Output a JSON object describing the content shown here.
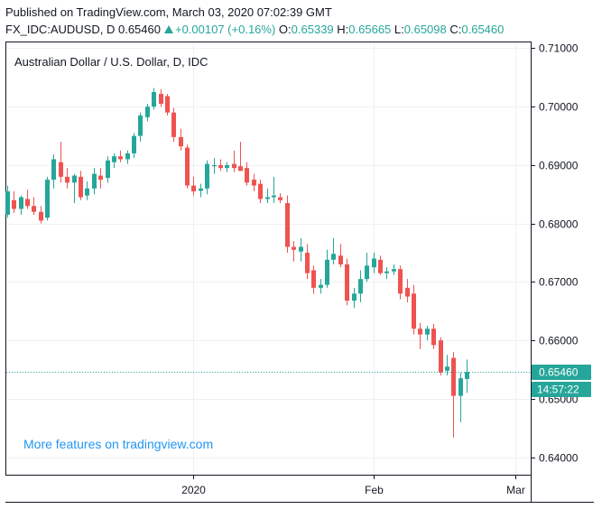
{
  "header": {
    "published": "Published on TradingView.com, March 03, 2020 07:02:39 GMT",
    "symbol": "FX_IDC:AUDUSD, D",
    "last": "0.65460",
    "change": "+0.00107 (+0.16%)",
    "o_label": "O:",
    "o_value": "0.65339",
    "h_label": "H:",
    "h_value": "0.65665",
    "l_label": "L:",
    "l_value": "0.65098",
    "c_label": "C:",
    "c_value": "0.65460"
  },
  "chart_data": {
    "type": "candlestick",
    "title": "Australian Dollar / U.S. Dollar, D, IDC",
    "ylim": [
      0.637,
      0.711
    ],
    "y_ticks": [
      "0.71000",
      "0.70000",
      "0.69000",
      "0.68000",
      "0.67000",
      "0.66000",
      "0.65000",
      "0.64000"
    ],
    "y_tick_values": [
      0.71,
      0.7,
      0.69,
      0.68,
      0.67,
      0.66,
      0.65,
      0.64
    ],
    "x_ticks": [
      "2020",
      "Feb",
      "Mar"
    ],
    "x_tick_positions": [
      28,
      55,
      76.3
    ],
    "last_price": 0.6546,
    "last_price_label": "0.65460",
    "countdown": "14:57:22",
    "promo": "More features on tradingview.com",
    "colors": {
      "up": "#26a69a",
      "down": "#ef5350",
      "grid": "#eef1f5",
      "axis": "#131722",
      "last": "#26a69a"
    },
    "candles": [
      {
        "o": 0.6815,
        "h": 0.6865,
        "l": 0.681,
        "c": 0.6855
      },
      {
        "o": 0.684,
        "h": 0.6855,
        "l": 0.6818,
        "c": 0.6825
      },
      {
        "o": 0.6825,
        "h": 0.6848,
        "l": 0.6815,
        "c": 0.6845
      },
      {
        "o": 0.6842,
        "h": 0.6858,
        "l": 0.6825,
        "c": 0.683
      },
      {
        "o": 0.683,
        "h": 0.6845,
        "l": 0.6815,
        "c": 0.682
      },
      {
        "o": 0.682,
        "h": 0.683,
        "l": 0.68,
        "c": 0.6805
      },
      {
        "o": 0.681,
        "h": 0.688,
        "l": 0.6805,
        "c": 0.6875
      },
      {
        "o": 0.6875,
        "h": 0.6918,
        "l": 0.686,
        "c": 0.691
      },
      {
        "o": 0.6905,
        "h": 0.694,
        "l": 0.687,
        "c": 0.688
      },
      {
        "o": 0.688,
        "h": 0.6895,
        "l": 0.686,
        "c": 0.687
      },
      {
        "o": 0.687,
        "h": 0.6885,
        "l": 0.6835,
        "c": 0.6882
      },
      {
        "o": 0.688,
        "h": 0.689,
        "l": 0.684,
        "c": 0.6845
      },
      {
        "o": 0.6848,
        "h": 0.6872,
        "l": 0.684,
        "c": 0.686
      },
      {
        "o": 0.686,
        "h": 0.6895,
        "l": 0.685,
        "c": 0.6885
      },
      {
        "o": 0.6882,
        "h": 0.6895,
        "l": 0.686,
        "c": 0.6875
      },
      {
        "o": 0.6878,
        "h": 0.6915,
        "l": 0.687,
        "c": 0.6908
      },
      {
        "o": 0.6905,
        "h": 0.692,
        "l": 0.6895,
        "c": 0.6915
      },
      {
        "o": 0.6915,
        "h": 0.6925,
        "l": 0.6905,
        "c": 0.691
      },
      {
        "o": 0.691,
        "h": 0.6925,
        "l": 0.6902,
        "c": 0.692
      },
      {
        "o": 0.692,
        "h": 0.6955,
        "l": 0.6912,
        "c": 0.695
      },
      {
        "o": 0.695,
        "h": 0.699,
        "l": 0.694,
        "c": 0.6985
      },
      {
        "o": 0.6982,
        "h": 0.7005,
        "l": 0.6975,
        "c": 0.7
      },
      {
        "o": 0.7,
        "h": 0.7032,
        "l": 0.6995,
        "c": 0.7025
      },
      {
        "o": 0.7022,
        "h": 0.703,
        "l": 0.7,
        "c": 0.7005
      },
      {
        "o": 0.7018,
        "h": 0.7022,
        "l": 0.6985,
        "c": 0.699
      },
      {
        "o": 0.699,
        "h": 0.6998,
        "l": 0.694,
        "c": 0.6948
      },
      {
        "o": 0.6948,
        "h": 0.6962,
        "l": 0.6925,
        "c": 0.6932
      },
      {
        "o": 0.693,
        "h": 0.6935,
        "l": 0.686,
        "c": 0.6865
      },
      {
        "o": 0.6865,
        "h": 0.688,
        "l": 0.6848,
        "c": 0.6855
      },
      {
        "o": 0.6856,
        "h": 0.6868,
        "l": 0.6845,
        "c": 0.686
      },
      {
        "o": 0.686,
        "h": 0.6908,
        "l": 0.685,
        "c": 0.6902
      },
      {
        "o": 0.6898,
        "h": 0.6912,
        "l": 0.6885,
        "c": 0.69
      },
      {
        "o": 0.69,
        "h": 0.691,
        "l": 0.689,
        "c": 0.6895
      },
      {
        "o": 0.6895,
        "h": 0.6905,
        "l": 0.6888,
        "c": 0.69
      },
      {
        "o": 0.6902,
        "h": 0.6925,
        "l": 0.6888,
        "c": 0.6895
      },
      {
        "o": 0.6898,
        "h": 0.694,
        "l": 0.689,
        "c": 0.689
      },
      {
        "o": 0.6895,
        "h": 0.6905,
        "l": 0.6865,
        "c": 0.687
      },
      {
        "o": 0.6875,
        "h": 0.6885,
        "l": 0.6855,
        "c": 0.6865
      },
      {
        "o": 0.6868,
        "h": 0.6875,
        "l": 0.6835,
        "c": 0.6842
      },
      {
        "o": 0.6842,
        "h": 0.686,
        "l": 0.6835,
        "c": 0.6845
      },
      {
        "o": 0.6845,
        "h": 0.688,
        "l": 0.6835,
        "c": 0.6848
      },
      {
        "o": 0.6845,
        "h": 0.6852,
        "l": 0.6835,
        "c": 0.684
      },
      {
        "o": 0.6835,
        "h": 0.6848,
        "l": 0.675,
        "c": 0.676
      },
      {
        "o": 0.676,
        "h": 0.677,
        "l": 0.6735,
        "c": 0.6755
      },
      {
        "o": 0.6752,
        "h": 0.6775,
        "l": 0.6735,
        "c": 0.676
      },
      {
        "o": 0.675,
        "h": 0.6765,
        "l": 0.6705,
        "c": 0.6715
      },
      {
        "o": 0.672,
        "h": 0.6728,
        "l": 0.668,
        "c": 0.669
      },
      {
        "o": 0.669,
        "h": 0.6705,
        "l": 0.668,
        "c": 0.6695
      },
      {
        "o": 0.6695,
        "h": 0.6755,
        "l": 0.669,
        "c": 0.6738
      },
      {
        "o": 0.6738,
        "h": 0.6775,
        "l": 0.673,
        "c": 0.6748
      },
      {
        "o": 0.6745,
        "h": 0.6765,
        "l": 0.6725,
        "c": 0.673
      },
      {
        "o": 0.673,
        "h": 0.674,
        "l": 0.666,
        "c": 0.6668
      },
      {
        "o": 0.6668,
        "h": 0.669,
        "l": 0.6655,
        "c": 0.668
      },
      {
        "o": 0.668,
        "h": 0.672,
        "l": 0.6665,
        "c": 0.6705
      },
      {
        "o": 0.6705,
        "h": 0.675,
        "l": 0.67,
        "c": 0.6728
      },
      {
        "o": 0.6725,
        "h": 0.675,
        "l": 0.6715,
        "c": 0.674
      },
      {
        "o": 0.6738,
        "h": 0.6745,
        "l": 0.6712,
        "c": 0.6715
      },
      {
        "o": 0.6715,
        "h": 0.6725,
        "l": 0.6705,
        "c": 0.6718
      },
      {
        "o": 0.6718,
        "h": 0.673,
        "l": 0.6712,
        "c": 0.6722
      },
      {
        "o": 0.6722,
        "h": 0.6728,
        "l": 0.667,
        "c": 0.668
      },
      {
        "o": 0.669,
        "h": 0.6705,
        "l": 0.6665,
        "c": 0.6675
      },
      {
        "o": 0.668,
        "h": 0.6695,
        "l": 0.661,
        "c": 0.662
      },
      {
        "o": 0.662,
        "h": 0.663,
        "l": 0.6585,
        "c": 0.661
      },
      {
        "o": 0.661,
        "h": 0.6625,
        "l": 0.66,
        "c": 0.662
      },
      {
        "o": 0.662,
        "h": 0.6628,
        "l": 0.6585,
        "c": 0.6592
      },
      {
        "o": 0.66,
        "h": 0.6605,
        "l": 0.654,
        "c": 0.6545
      },
      {
        "o": 0.6548,
        "h": 0.6575,
        "l": 0.654,
        "c": 0.6555
      },
      {
        "o": 0.657,
        "h": 0.658,
        "l": 0.6434,
        "c": 0.6505
      },
      {
        "o": 0.6505,
        "h": 0.6545,
        "l": 0.646,
        "c": 0.6535
      },
      {
        "o": 0.6534,
        "h": 0.6567,
        "l": 0.651,
        "c": 0.6546
      }
    ]
  }
}
